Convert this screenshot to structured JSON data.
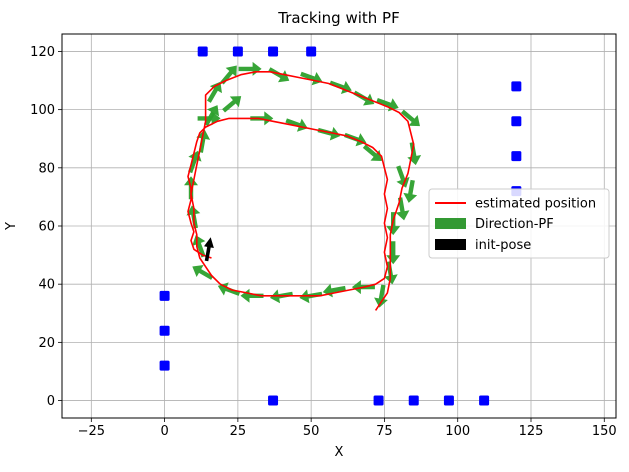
{
  "chart_data": {
    "type": "scatter",
    "title": "Tracking with PF",
    "xlabel": "X",
    "ylabel": "Y",
    "xlim": [
      -35,
      154
    ],
    "ylim": [
      -6,
      126
    ],
    "xticks": [
      -25,
      0,
      25,
      50,
      75,
      100,
      125,
      150
    ],
    "yticks": [
      0,
      20,
      40,
      60,
      80,
      100,
      120
    ],
    "grid": true,
    "legend_position": "center-right",
    "legend": [
      "estimated position",
      "Direction-PF",
      "init-pose"
    ],
    "colors": {
      "estimated_position": "#ff0000",
      "direction_pf": "#2ca02c",
      "init_pose": "#000000",
      "landmarks": "#0000ff"
    },
    "landmarks": [
      [
        13,
        120
      ],
      [
        25,
        120
      ],
      [
        37,
        120
      ],
      [
        50,
        120
      ],
      [
        0,
        36
      ],
      [
        0,
        24
      ],
      [
        0,
        12
      ],
      [
        37,
        0
      ],
      [
        73,
        0
      ],
      [
        85,
        0
      ],
      [
        97,
        0
      ],
      [
        109,
        0
      ],
      [
        120,
        108
      ],
      [
        120,
        96
      ],
      [
        120,
        84
      ],
      [
        120,
        72
      ]
    ],
    "estimated_position": [
      [
        16,
        49
      ],
      [
        13,
        50
      ],
      [
        10,
        52
      ],
      [
        9,
        55
      ],
      [
        10,
        58
      ],
      [
        9,
        61
      ],
      [
        8,
        65
      ],
      [
        9,
        69
      ],
      [
        9,
        73
      ],
      [
        8,
        77
      ],
      [
        9,
        81
      ],
      [
        10,
        85
      ],
      [
        11,
        89
      ],
      [
        12,
        92
      ],
      [
        14,
        94
      ],
      [
        18,
        96
      ],
      [
        22,
        97
      ],
      [
        27,
        97
      ],
      [
        32,
        97
      ],
      [
        37,
        96
      ],
      [
        42,
        95
      ],
      [
        47,
        94
      ],
      [
        52,
        93
      ],
      [
        57,
        92
      ],
      [
        62,
        91
      ],
      [
        67,
        89
      ],
      [
        71,
        87
      ],
      [
        74,
        84
      ],
      [
        75,
        80
      ],
      [
        76,
        76
      ],
      [
        75,
        71
      ],
      [
        76,
        66
      ],
      [
        75,
        61
      ],
      [
        76,
        56
      ],
      [
        75,
        51
      ],
      [
        76,
        46
      ],
      [
        75,
        42
      ],
      [
        72,
        40
      ],
      [
        68,
        39
      ],
      [
        63,
        38
      ],
      [
        58,
        37
      ],
      [
        53,
        36
      ],
      [
        48,
        36
      ],
      [
        43,
        36
      ],
      [
        38,
        36
      ],
      [
        33,
        36
      ],
      [
        28,
        37
      ],
      [
        23,
        38
      ],
      [
        19,
        40
      ],
      [
        16,
        43
      ],
      [
        14,
        46
      ],
      [
        12,
        49
      ],
      [
        11,
        53
      ],
      [
        11,
        57
      ],
      [
        10,
        61
      ],
      [
        10,
        66
      ],
      [
        9,
        71
      ],
      [
        10,
        76
      ],
      [
        11,
        81
      ],
      [
        12,
        86
      ],
      [
        13,
        91
      ],
      [
        14,
        96
      ],
      [
        14,
        101
      ],
      [
        14,
        105
      ],
      [
        17,
        108
      ],
      [
        21,
        110
      ],
      [
        26,
        112
      ],
      [
        31,
        113
      ],
      [
        36,
        113
      ],
      [
        41,
        112
      ],
      [
        46,
        111
      ],
      [
        51,
        110
      ],
      [
        56,
        109
      ],
      [
        61,
        107
      ],
      [
        66,
        105
      ],
      [
        71,
        103
      ],
      [
        76,
        101
      ],
      [
        80,
        99
      ],
      [
        83,
        96
      ],
      [
        84,
        92
      ],
      [
        85,
        88
      ],
      [
        84,
        83
      ],
      [
        83,
        78
      ],
      [
        81,
        73
      ],
      [
        80,
        68
      ],
      [
        78,
        62
      ],
      [
        77,
        57
      ],
      [
        77,
        52
      ],
      [
        77,
        47
      ],
      [
        77,
        42
      ],
      [
        76,
        37
      ],
      [
        74,
        34
      ],
      [
        72,
        31
      ]
    ],
    "direction_pf": [
      [
        29,
        114,
        0
      ],
      [
        39,
        112,
        -30
      ],
      [
        50,
        111,
        -20
      ],
      [
        60,
        108,
        -20
      ],
      [
        68,
        104,
        -30
      ],
      [
        76,
        102,
        -20
      ],
      [
        84,
        97,
        -40
      ],
      [
        33,
        97,
        0
      ],
      [
        45,
        95,
        -20
      ],
      [
        56,
        92,
        -15
      ],
      [
        65,
        90,
        -20
      ],
      [
        71,
        85,
        -40
      ],
      [
        85,
        85,
        -80
      ],
      [
        81,
        77,
        -70
      ],
      [
        84,
        72,
        -100
      ],
      [
        81,
        66,
        -80
      ],
      [
        78,
        61,
        -90
      ],
      [
        78,
        51,
        -90
      ],
      [
        77,
        44,
        -80
      ],
      [
        74,
        36,
        -100
      ],
      [
        68,
        39,
        180
      ],
      [
        58,
        38,
        190
      ],
      [
        50,
        36,
        190
      ],
      [
        40,
        36,
        190
      ],
      [
        30,
        36,
        180
      ],
      [
        22,
        38,
        160
      ],
      [
        13,
        44,
        150
      ],
      [
        12,
        53,
        110
      ],
      [
        10,
        63,
        100
      ],
      [
        9,
        73,
        90
      ],
      [
        10,
        82,
        70
      ],
      [
        13,
        89,
        80
      ],
      [
        16,
        98,
        60
      ],
      [
        17,
        106,
        60
      ],
      [
        22,
        112,
        50
      ],
      [
        15,
        97,
        0
      ],
      [
        23,
        102,
        40
      ]
    ],
    "init_pose": [
      15,
      50,
      80
    ]
  }
}
